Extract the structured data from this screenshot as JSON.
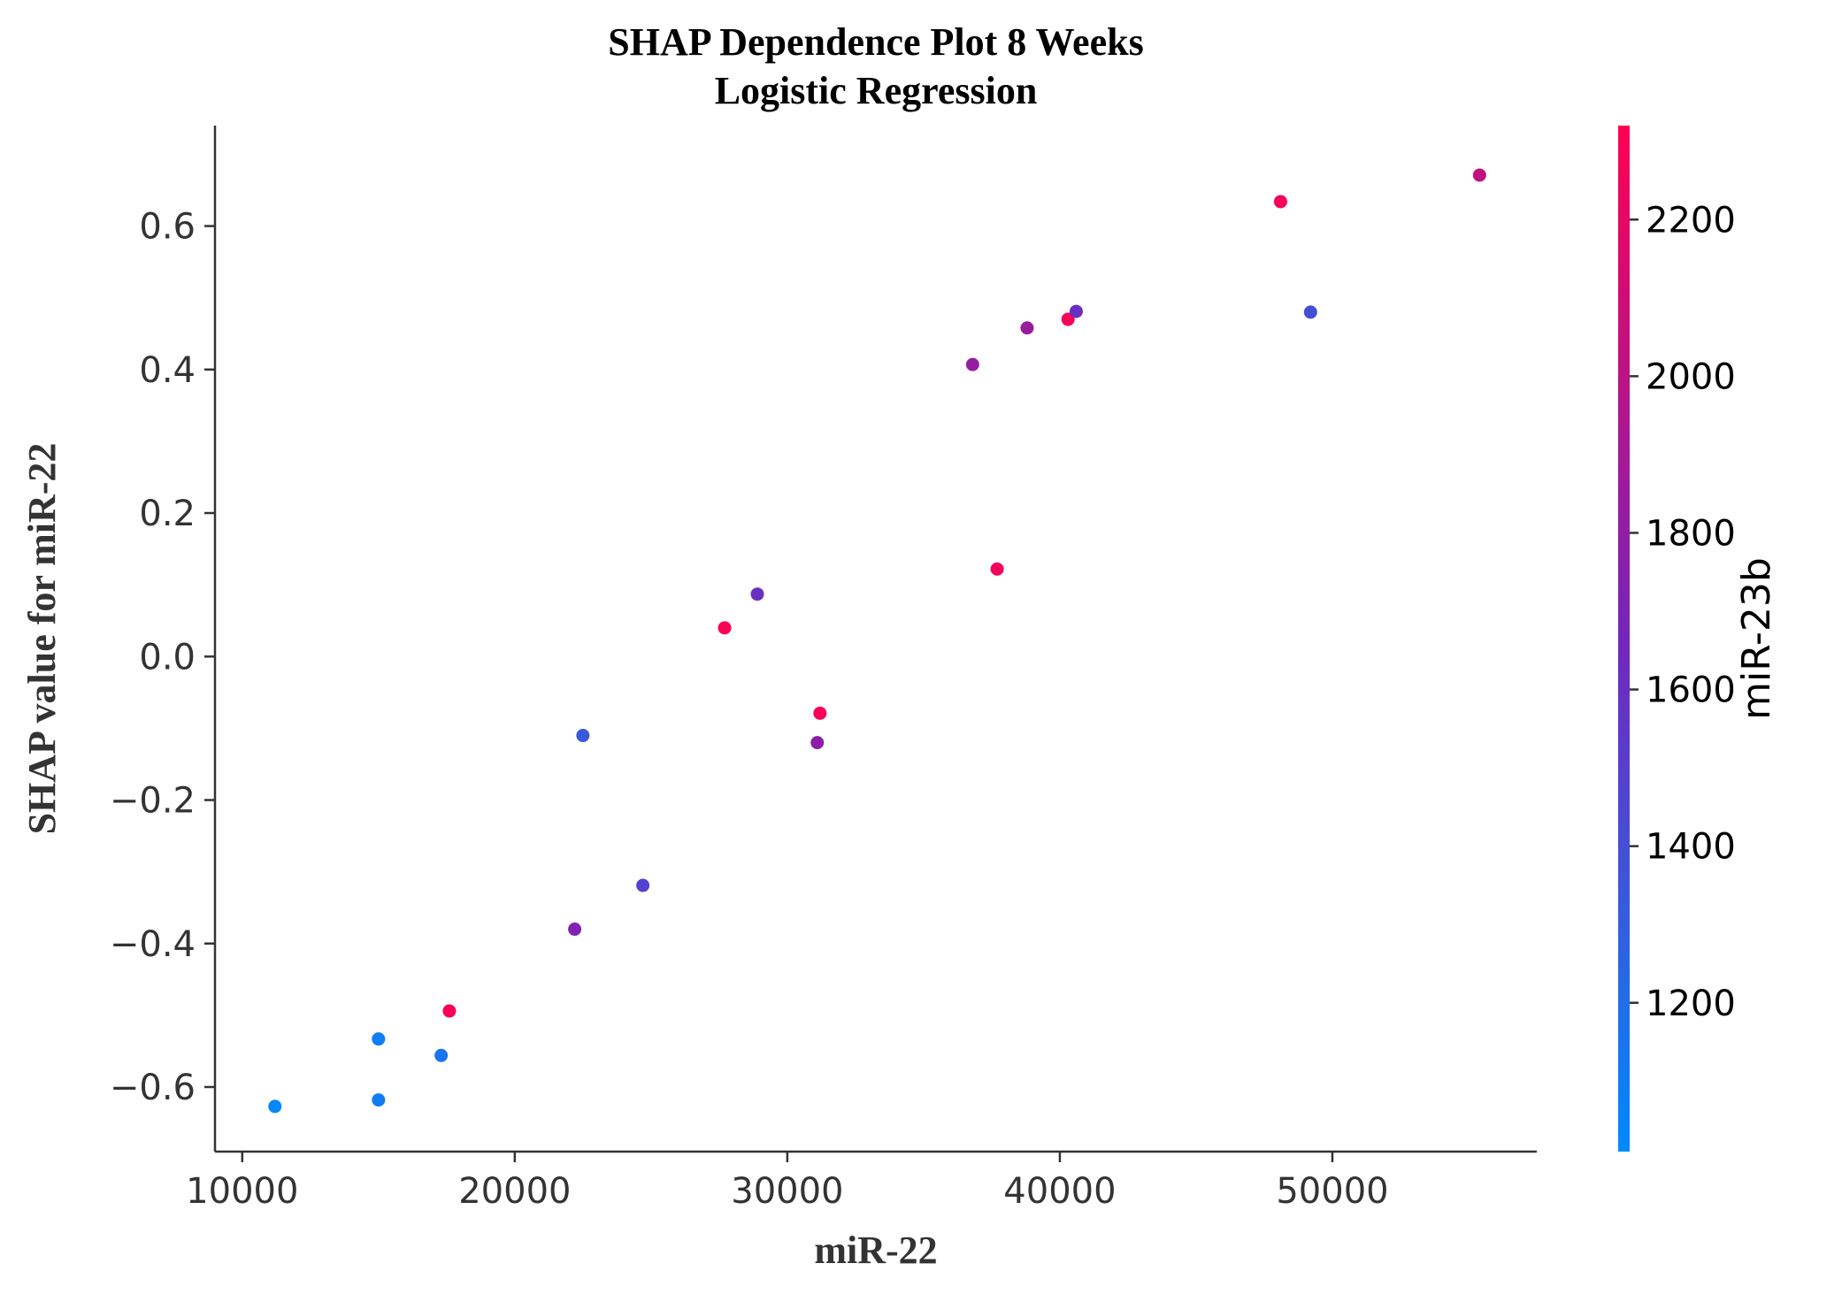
{
  "chart_data": {
    "type": "scatter",
    "title": [
      "SHAP Dependence Plot 8 Weeks",
      "Logistic Regression"
    ],
    "xlabel": "miR-22",
    "ylabel": "SHAP value for miR-22",
    "xlim": [
      9000,
      57500
    ],
    "ylim": [
      -0.69,
      0.74
    ],
    "xticks": [
      10000,
      20000,
      30000,
      40000,
      50000
    ],
    "xtick_labels": [
      "10000",
      "20000",
      "30000",
      "40000",
      "50000"
    ],
    "yticks": [
      -0.6,
      -0.4,
      -0.2,
      0.0,
      0.2,
      0.4,
      0.6
    ],
    "ytick_labels": [
      "−0.6",
      "−0.4",
      "−0.2",
      "0.0",
      "0.2",
      "0.4",
      "0.6"
    ],
    "grid": false,
    "color_feature": "miR-23b",
    "colorbar": {
      "label": "miR-23b",
      "range": [
        1010,
        2320
      ],
      "ticks": [
        1200,
        1400,
        1600,
        1800,
        2000,
        2200
      ],
      "tick_labels": [
        "1200",
        "1400",
        "1600",
        "1800",
        "2000",
        "2200"
      ],
      "colors": [
        "#008afb",
        "#ff0052"
      ]
    },
    "points": [
      {
        "x": 11200,
        "y": -0.627,
        "c": 1030
      },
      {
        "x": 15000,
        "y": -0.533,
        "c": 1090
      },
      {
        "x": 15000,
        "y": -0.618,
        "c": 1110
      },
      {
        "x": 17300,
        "y": -0.556,
        "c": 1150
      },
      {
        "x": 17600,
        "y": -0.494,
        "c": 2300
      },
      {
        "x": 22200,
        "y": -0.38,
        "c": 1720
      },
      {
        "x": 22500,
        "y": -0.11,
        "c": 1330
      },
      {
        "x": 24700,
        "y": -0.319,
        "c": 1480
      },
      {
        "x": 27700,
        "y": 0.04,
        "c": 2290
      },
      {
        "x": 28900,
        "y": 0.087,
        "c": 1600
      },
      {
        "x": 31100,
        "y": -0.12,
        "c": 1780
      },
      {
        "x": 31200,
        "y": -0.079,
        "c": 2290
      },
      {
        "x": 36800,
        "y": 0.407,
        "c": 1820
      },
      {
        "x": 37700,
        "y": 0.122,
        "c": 2260
      },
      {
        "x": 38800,
        "y": 0.458,
        "c": 1850
      },
      {
        "x": 40300,
        "y": 0.47,
        "c": 2290
      },
      {
        "x": 40600,
        "y": 0.481,
        "c": 1610
      },
      {
        "x": 48100,
        "y": 0.634,
        "c": 2270
      },
      {
        "x": 49200,
        "y": 0.48,
        "c": 1390
      },
      {
        "x": 55400,
        "y": 0.671,
        "c": 2030
      }
    ]
  }
}
